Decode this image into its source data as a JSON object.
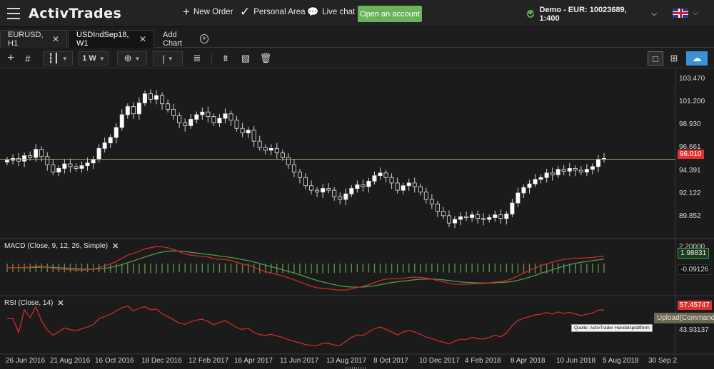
{
  "header": {
    "logo": "ActivTrades",
    "new_order": "New Order",
    "personal_area": "Personal Area",
    "live_chat": "Live chat",
    "open_account": "Open an account",
    "account": "Demo - EUR: 10023689, 1:400"
  },
  "tabs": [
    {
      "label": "EURUSD, H1",
      "active": false
    },
    {
      "label": "USDIndSep18, W1",
      "active": true
    }
  ],
  "add_chart": "Add Chart",
  "toolbar": {
    "timeframe": "1 W",
    "cursor": "|"
  },
  "panes": {
    "main": {
      "price_axis": [
        "103.470",
        "101.200",
        "98.930",
        "96.661",
        "94.391",
        "92.122",
        "89.852"
      ],
      "current_price": "96.010"
    },
    "macd": {
      "label": "MACD (Close, 9, 12, 26, Simple)",
      "value1": "1.98831",
      "value2": "-0.09126",
      "top_tick": "2.20000"
    },
    "rsi": {
      "label": "RSI (Close, 14)",
      "value": "57.45747",
      "tick": "43.93137"
    }
  },
  "x_axis": [
    "26 Jun 2016",
    "21 Aug 2016",
    "16 Oct 2016",
    "18 Dec 2016",
    "12 Feb 2017",
    "16 Apr 2017",
    "11 Jun 2017",
    "13 Aug 2017",
    "8 Oct 2017",
    "10 Dec 2017",
    "4 Feb 2018",
    "8 Apr 2018",
    "10 Jun 2018",
    "5 Aug 2018",
    "30 Sep 2"
  ],
  "overlays": {
    "source_note": "Quelle: ActivTrader Handelsplattform",
    "upload_tip": "Upload(Command"
  },
  "colors": {
    "up_candle": "#ffffff",
    "down_candle": "#ffffff",
    "price_line": "#7fb46a",
    "macd_line": "#d22a2a",
    "signal_line": "#4f9a48",
    "histogram": "#5c8f4a",
    "rsi_line": "#d22a2a",
    "accent": "#6bb35a"
  },
  "chart_data": {
    "type": "candlestick",
    "series": [
      {
        "name": "USDIndSep18, W1",
        "close": [
          95.9,
          96.1,
          95.8,
          96.4,
          96.2,
          97.1,
          96.3,
          95.4,
          94.6,
          95.0,
          95.5,
          95.2,
          95.0,
          95.3,
          95.6,
          96.0,
          97.2,
          97.8,
          98.4,
          99.5,
          100.9,
          101.8,
          101.0,
          102.2,
          103.2,
          102.6,
          103.0,
          102.1,
          101.5,
          100.8,
          100.0,
          99.7,
          100.4,
          100.9,
          101.2,
          100.7,
          100.0,
          100.5,
          101.0,
          100.3,
          99.4,
          98.9,
          99.2,
          98.0,
          97.3,
          97.0,
          97.2,
          96.7,
          96.2,
          95.4,
          94.6,
          94.0,
          93.1,
          92.6,
          92.4,
          92.8,
          92.6,
          91.9,
          91.6,
          92.2,
          92.8,
          93.2,
          93.0,
          93.6,
          94.2,
          94.5,
          94.0,
          93.4,
          92.6,
          93.1,
          93.4,
          93.0,
          92.4,
          91.6,
          91.1,
          90.3,
          89.8,
          89.0,
          89.4,
          89.7,
          89.6,
          89.9,
          89.5,
          89.4,
          89.6,
          89.9,
          89.5,
          90.0,
          91.2,
          92.3,
          92.9,
          93.3,
          93.8,
          94.0,
          94.5,
          94.3,
          94.9,
          94.7,
          95.0,
          94.8,
          94.6,
          94.9,
          95.2,
          96.0,
          96.1
        ]
      }
    ],
    "y_ticks": [
      103.47,
      101.2,
      98.93,
      96.661,
      94.391,
      92.122,
      89.852
    ],
    "current_price": 96.01
  }
}
